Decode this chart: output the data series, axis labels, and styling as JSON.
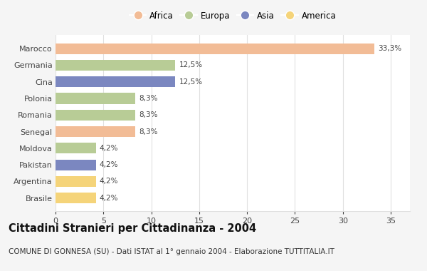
{
  "categories": [
    "Marocco",
    "Germania",
    "Cina",
    "Polonia",
    "Romania",
    "Senegal",
    "Moldova",
    "Pakistan",
    "Argentina",
    "Brasile"
  ],
  "values": [
    33.3,
    12.5,
    12.5,
    8.3,
    8.3,
    8.3,
    4.2,
    4.2,
    4.2,
    4.2
  ],
  "labels": [
    "33,3%",
    "12,5%",
    "12,5%",
    "8,3%",
    "8,3%",
    "8,3%",
    "4,2%",
    "4,2%",
    "4,2%",
    "4,2%"
  ],
  "bar_colors": [
    "#f2bc96",
    "#b8cc96",
    "#7b87c0",
    "#b8cc96",
    "#b8cc96",
    "#f2bc96",
    "#b8cc96",
    "#7b87c0",
    "#f5d47a",
    "#f5d47a"
  ],
  "legend_labels": [
    "Africa",
    "Europa",
    "Asia",
    "America"
  ],
  "legend_colors": [
    "#f2bc96",
    "#b8cc96",
    "#7b87c0",
    "#f5d47a"
  ],
  "title": "Cittadini Stranieri per Cittadinanza - 2004",
  "subtitle": "COMUNE DI GONNESA (SU) - Dati ISTAT al 1° gennaio 2004 - Elaborazione TUTTITALIA.IT",
  "xlim": [
    0,
    37
  ],
  "xticks": [
    0,
    5,
    10,
    15,
    20,
    25,
    30,
    35
  ],
  "background_color": "#f5f5f5",
  "plot_bg_color": "#ffffff",
  "grid_color": "#e0e0e0",
  "title_fontsize": 10.5,
  "subtitle_fontsize": 7.5,
  "label_fontsize": 7.5,
  "tick_fontsize": 8,
  "legend_fontsize": 8.5
}
